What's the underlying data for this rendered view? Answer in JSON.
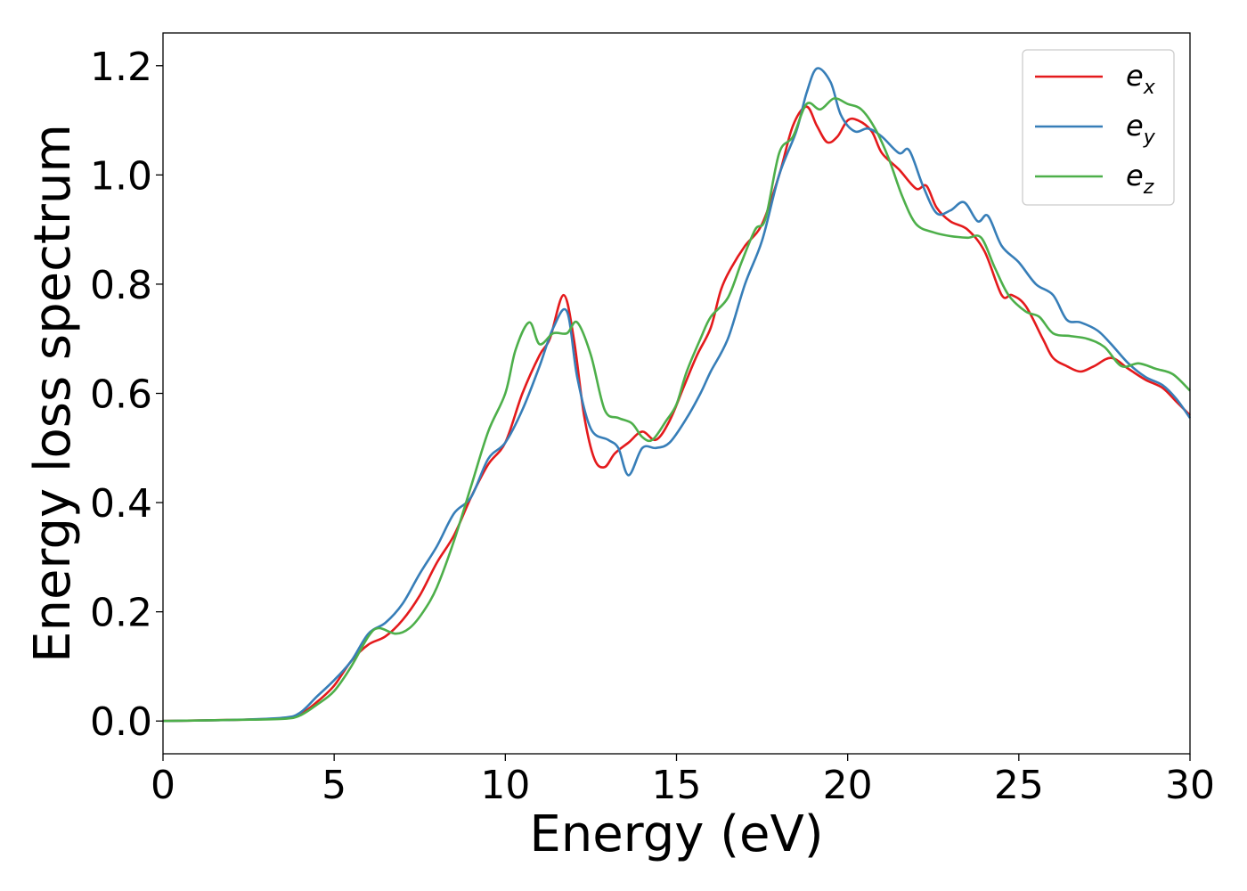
{
  "chart_data": {
    "type": "line",
    "title": "",
    "xlabel": "Energy (eV)",
    "ylabel": "Energy loss spectrum",
    "xlim": [
      0,
      30
    ],
    "ylim": [
      -0.06,
      1.26
    ],
    "xticks": [
      0,
      5,
      10,
      15,
      20,
      25,
      30
    ],
    "xtick_labels": [
      "0",
      "5",
      "10",
      "15",
      "20",
      "25",
      "30"
    ],
    "yticks": [
      0.0,
      0.2,
      0.4,
      0.6,
      0.8,
      1.0,
      1.2
    ],
    "ytick_labels": [
      "0.0",
      "0.2",
      "0.4",
      "0.6",
      "0.8",
      "1.0",
      "1.2"
    ],
    "grid": false,
    "legend_position": "top-right",
    "series": [
      {
        "name": "e_x",
        "label_base": "e",
        "label_sub": "x",
        "color": "#e41a1c",
        "points": [
          [
            0,
            0
          ],
          [
            2,
            0.002
          ],
          [
            3.5,
            0.005
          ],
          [
            4,
            0.012
          ],
          [
            4.5,
            0.035
          ],
          [
            5,
            0.065
          ],
          [
            5.5,
            0.11
          ],
          [
            6,
            0.14
          ],
          [
            6.5,
            0.155
          ],
          [
            7,
            0.185
          ],
          [
            7.5,
            0.23
          ],
          [
            8,
            0.29
          ],
          [
            8.5,
            0.34
          ],
          [
            9,
            0.41
          ],
          [
            9.5,
            0.47
          ],
          [
            10,
            0.51
          ],
          [
            10.5,
            0.6
          ],
          [
            11,
            0.67
          ],
          [
            11.3,
            0.7
          ],
          [
            11.7,
            0.78
          ],
          [
            12,
            0.7
          ],
          [
            12.3,
            0.56
          ],
          [
            12.6,
            0.48
          ],
          [
            12.9,
            0.465
          ],
          [
            13.2,
            0.49
          ],
          [
            13.6,
            0.51
          ],
          [
            14,
            0.53
          ],
          [
            14.4,
            0.515
          ],
          [
            14.8,
            0.55
          ],
          [
            15.2,
            0.61
          ],
          [
            15.6,
            0.67
          ],
          [
            16,
            0.72
          ],
          [
            16.3,
            0.79
          ],
          [
            16.6,
            0.83
          ],
          [
            17,
            0.87
          ],
          [
            17.5,
            0.91
          ],
          [
            18,
            1.0
          ],
          [
            18.4,
            1.09
          ],
          [
            18.8,
            1.125
          ],
          [
            19.1,
            1.09
          ],
          [
            19.4,
            1.06
          ],
          [
            19.7,
            1.07
          ],
          [
            20,
            1.1
          ],
          [
            20.3,
            1.1
          ],
          [
            20.7,
            1.08
          ],
          [
            21,
            1.04
          ],
          [
            21.5,
            1.01
          ],
          [
            22,
            0.975
          ],
          [
            22.3,
            0.98
          ],
          [
            22.6,
            0.94
          ],
          [
            23,
            0.915
          ],
          [
            23.5,
            0.9
          ],
          [
            24,
            0.86
          ],
          [
            24.5,
            0.78
          ],
          [
            24.8,
            0.78
          ],
          [
            25.2,
            0.76
          ],
          [
            25.7,
            0.7
          ],
          [
            26,
            0.665
          ],
          [
            26.4,
            0.65
          ],
          [
            26.8,
            0.64
          ],
          [
            27.2,
            0.65
          ],
          [
            27.7,
            0.665
          ],
          [
            28.2,
            0.645
          ],
          [
            28.7,
            0.625
          ],
          [
            29.2,
            0.61
          ],
          [
            29.6,
            0.585
          ],
          [
            30,
            0.56
          ]
        ]
      },
      {
        "name": "e_y",
        "label_base": "e",
        "label_sub": "y",
        "color": "#377eb8",
        "points": [
          [
            0,
            0
          ],
          [
            2,
            0.002
          ],
          [
            3.5,
            0.006
          ],
          [
            4,
            0.015
          ],
          [
            4.5,
            0.045
          ],
          [
            5,
            0.075
          ],
          [
            5.5,
            0.11
          ],
          [
            6,
            0.16
          ],
          [
            6.5,
            0.18
          ],
          [
            7,
            0.215
          ],
          [
            7.5,
            0.27
          ],
          [
            8,
            0.32
          ],
          [
            8.5,
            0.38
          ],
          [
            9,
            0.41
          ],
          [
            9.5,
            0.48
          ],
          [
            10,
            0.51
          ],
          [
            10.5,
            0.57
          ],
          [
            11,
            0.65
          ],
          [
            11.4,
            0.72
          ],
          [
            11.8,
            0.75
          ],
          [
            12.1,
            0.63
          ],
          [
            12.5,
            0.535
          ],
          [
            13,
            0.515
          ],
          [
            13.3,
            0.5
          ],
          [
            13.6,
            0.45
          ],
          [
            14,
            0.5
          ],
          [
            14.4,
            0.5
          ],
          [
            14.8,
            0.51
          ],
          [
            15.3,
            0.555
          ],
          [
            15.7,
            0.6
          ],
          [
            16,
            0.64
          ],
          [
            16.5,
            0.7
          ],
          [
            17,
            0.8
          ],
          [
            17.5,
            0.88
          ],
          [
            18,
            1.0
          ],
          [
            18.5,
            1.08
          ],
          [
            18.8,
            1.15
          ],
          [
            19.1,
            1.195
          ],
          [
            19.5,
            1.17
          ],
          [
            19.8,
            1.11
          ],
          [
            20.2,
            1.08
          ],
          [
            20.6,
            1.085
          ],
          [
            21,
            1.07
          ],
          [
            21.5,
            1.04
          ],
          [
            21.8,
            1.045
          ],
          [
            22.2,
            0.98
          ],
          [
            22.6,
            0.93
          ],
          [
            23,
            0.935
          ],
          [
            23.4,
            0.95
          ],
          [
            23.8,
            0.915
          ],
          [
            24.1,
            0.925
          ],
          [
            24.5,
            0.87
          ],
          [
            25,
            0.84
          ],
          [
            25.5,
            0.8
          ],
          [
            26,
            0.78
          ],
          [
            26.4,
            0.735
          ],
          [
            26.8,
            0.73
          ],
          [
            27.3,
            0.715
          ],
          [
            27.7,
            0.69
          ],
          [
            28.2,
            0.655
          ],
          [
            28.7,
            0.63
          ],
          [
            29.2,
            0.615
          ],
          [
            29.6,
            0.59
          ],
          [
            30,
            0.555
          ]
        ]
      },
      {
        "name": "e_z",
        "label_base": "e",
        "label_sub": "z",
        "color": "#4daf4a",
        "points": [
          [
            0,
            0
          ],
          [
            2,
            0.002
          ],
          [
            3.5,
            0.004
          ],
          [
            4,
            0.01
          ],
          [
            4.5,
            0.03
          ],
          [
            5,
            0.055
          ],
          [
            5.5,
            0.1
          ],
          [
            6,
            0.155
          ],
          [
            6.3,
            0.17
          ],
          [
            6.8,
            0.16
          ],
          [
            7.2,
            0.17
          ],
          [
            7.6,
            0.2
          ],
          [
            8,
            0.245
          ],
          [
            8.5,
            0.33
          ],
          [
            9,
            0.43
          ],
          [
            9.5,
            0.53
          ],
          [
            10,
            0.6
          ],
          [
            10.3,
            0.68
          ],
          [
            10.7,
            0.73
          ],
          [
            11,
            0.69
          ],
          [
            11.4,
            0.71
          ],
          [
            11.8,
            0.71
          ],
          [
            12.1,
            0.73
          ],
          [
            12.5,
            0.67
          ],
          [
            12.9,
            0.57
          ],
          [
            13.3,
            0.555
          ],
          [
            13.7,
            0.545
          ],
          [
            14,
            0.52
          ],
          [
            14.3,
            0.515
          ],
          [
            14.7,
            0.55
          ],
          [
            15,
            0.58
          ],
          [
            15.3,
            0.64
          ],
          [
            15.7,
            0.7
          ],
          [
            16,
            0.74
          ],
          [
            16.5,
            0.775
          ],
          [
            16.9,
            0.84
          ],
          [
            17.3,
            0.9
          ],
          [
            17.6,
            0.92
          ],
          [
            18,
            1.04
          ],
          [
            18.4,
            1.07
          ],
          [
            18.8,
            1.13
          ],
          [
            19.2,
            1.12
          ],
          [
            19.6,
            1.14
          ],
          [
            20,
            1.13
          ],
          [
            20.4,
            1.12
          ],
          [
            20.8,
            1.085
          ],
          [
            21.2,
            1.03
          ],
          [
            21.6,
            0.96
          ],
          [
            22,
            0.91
          ],
          [
            22.5,
            0.895
          ],
          [
            23,
            0.888
          ],
          [
            23.5,
            0.885
          ],
          [
            23.9,
            0.885
          ],
          [
            24.3,
            0.83
          ],
          [
            24.7,
            0.78
          ],
          [
            25.2,
            0.75
          ],
          [
            25.6,
            0.74
          ],
          [
            26,
            0.71
          ],
          [
            26.5,
            0.705
          ],
          [
            27,
            0.7
          ],
          [
            27.5,
            0.685
          ],
          [
            28,
            0.65
          ],
          [
            28.5,
            0.655
          ],
          [
            29,
            0.645
          ],
          [
            29.5,
            0.635
          ],
          [
            30,
            0.605
          ]
        ]
      }
    ]
  }
}
